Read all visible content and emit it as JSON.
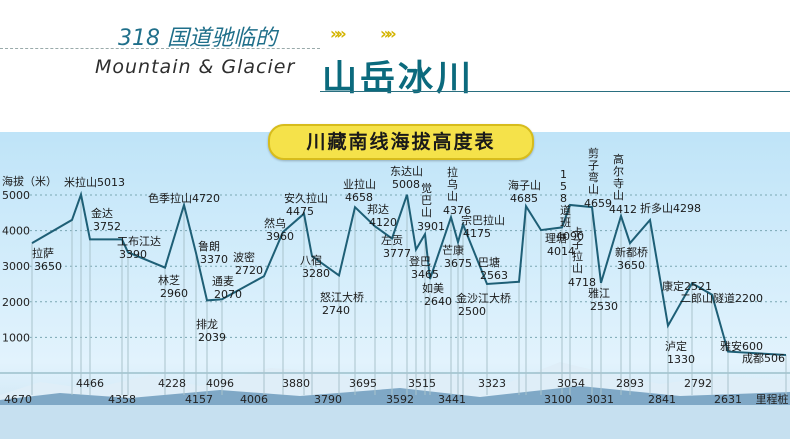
{
  "header": {
    "subtitle": "318 国道驰临的",
    "english": "Mountain  &  Glacier",
    "title": "山岳冰川",
    "badge": "川藏南线海拔高度表"
  },
  "chart_data": {
    "type": "line",
    "title": "川藏南线海拔高度表",
    "ylabel": "海拔（米）",
    "xlabel": "里程桩",
    "ylim": [
      0,
      5500
    ],
    "yticks": [
      1000,
      2000,
      3000,
      4000,
      5000
    ],
    "grid": true,
    "x_ticks": [
      "4670",
      "4466",
      "4358",
      "4228",
      "4157",
      "4096",
      "4006",
      "3880",
      "3790",
      "3695",
      "3592",
      "3515",
      "3441",
      "3323",
      "3100",
      "3054",
      "3031",
      "2893",
      "2841",
      "2792",
      "2631",
      "里程桩"
    ],
    "points": [
      {
        "name": "拉萨",
        "elev": 3650
      },
      {
        "name": "",
        "elev": 4300
      },
      {
        "name": "米拉山",
        "elev": 5013
      },
      {
        "name": "金达",
        "elev": 3752
      },
      {
        "name": "",
        "elev": 3752
      },
      {
        "name": "工布江达",
        "elev": 3390
      },
      {
        "name": "林芝",
        "elev": 2960
      },
      {
        "name": "色季拉山",
        "elev": 4720
      },
      {
        "name": "鲁朗",
        "elev": 3370
      },
      {
        "name": "排龙",
        "elev": 2039
      },
      {
        "name": "通麦",
        "elev": 2070
      },
      {
        "name": "波密",
        "elev": 2720
      },
      {
        "name": "然乌",
        "elev": 3960
      },
      {
        "name": "安久拉山",
        "elev": 4475
      },
      {
        "name": "八宿",
        "elev": 3280
      },
      {
        "name": "怒江大桥",
        "elev": 2740
      },
      {
        "name": "业拉山",
        "elev": 4658
      },
      {
        "name": "邦达",
        "elev": 4120
      },
      {
        "name": "左贡",
        "elev": 3777
      },
      {
        "name": "东达山",
        "elev": 5008
      },
      {
        "name": "登巴",
        "elev": 3465
      },
      {
        "name": "觉巴山",
        "elev": 3901
      },
      {
        "name": "如美",
        "elev": 2640
      },
      {
        "name": "拉乌山",
        "elev": 4376
      },
      {
        "name": "芒康",
        "elev": 3675
      },
      {
        "name": "宗巴拉山",
        "elev": 4175
      },
      {
        "name": "金沙江大桥",
        "elev": 2500
      },
      {
        "name": "巴塘",
        "elev": 2563
      },
      {
        "name": "海子山",
        "elev": 4685
      },
      {
        "name": "理塘",
        "elev": 4014
      },
      {
        "name": "158道班",
        "elev": 4090
      },
      {
        "name": "卡子拉山",
        "elev": 4718
      },
      {
        "name": "剪子弯山",
        "elev": 4659
      },
      {
        "name": "雅江",
        "elev": 2530
      },
      {
        "name": "高尔寺山",
        "elev": 4412
      },
      {
        "name": "新都桥",
        "elev": 3650
      },
      {
        "name": "折多山",
        "elev": 4298
      },
      {
        "name": "泸定",
        "elev": 1330
      },
      {
        "name": "康定",
        "elev": 2521
      },
      {
        "name": "二郎山隧道",
        "elev": 2200
      },
      {
        "name": "雅安",
        "elev": 600
      },
      {
        "name": "成都",
        "elev": 506
      }
    ]
  }
}
